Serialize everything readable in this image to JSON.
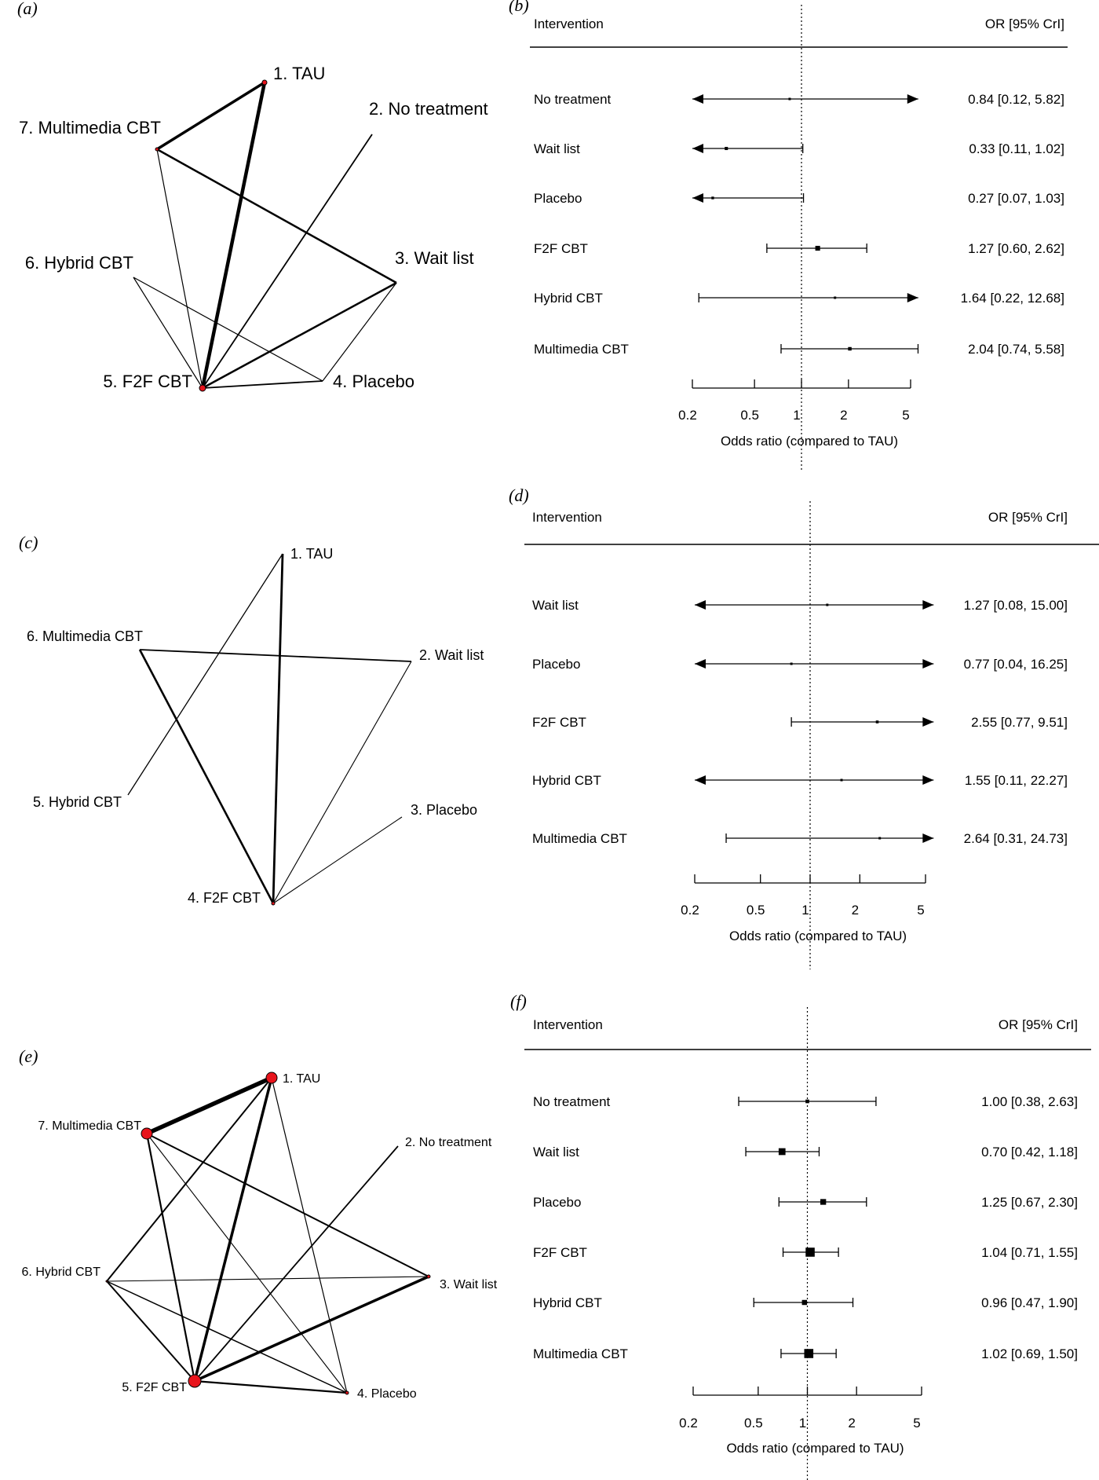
{
  "panels": {
    "a": {
      "label": "(a)"
    },
    "b": {
      "label": "(b)"
    },
    "c": {
      "label": "(c)"
    },
    "d": {
      "label": "(d)"
    },
    "e": {
      "label": "(e)"
    },
    "f": {
      "label": "(f)"
    }
  },
  "networks": [
    {
      "panel": "a",
      "nodes": [
        {
          "label": "1. TAU"
        },
        {
          "label": "2. No treatment"
        },
        {
          "label": "3. Wait list"
        },
        {
          "label": "4. Placebo"
        },
        {
          "label": "5. F2F CBT"
        },
        {
          "label": "6. Hybrid CBT"
        },
        {
          "label": "7. Multimedia CBT"
        }
      ],
      "edges": [
        {
          "from": 1,
          "to": 5,
          "weight": 4.5
        },
        {
          "from": 1,
          "to": 7,
          "weight": 3.5
        },
        {
          "from": 7,
          "to": 3,
          "weight": 2.5
        },
        {
          "from": 7,
          "to": 5,
          "weight": 1.2
        },
        {
          "from": 2,
          "to": 5,
          "weight": 1.8
        },
        {
          "from": 3,
          "to": 5,
          "weight": 2.5
        },
        {
          "from": 3,
          "to": 4,
          "weight": 1.2
        },
        {
          "from": 6,
          "to": 5,
          "weight": 1.2
        },
        {
          "from": 6,
          "to": 4,
          "weight": 1.2
        },
        {
          "from": 4,
          "to": 5,
          "weight": 1.8
        }
      ]
    },
    {
      "panel": "c",
      "nodes": [
        {
          "label": "1. TAU"
        },
        {
          "label": "2. Wait list"
        },
        {
          "label": "3. Placebo"
        },
        {
          "label": "4. F2F CBT"
        },
        {
          "label": "5. Hybrid CBT"
        },
        {
          "label": "6. Multimedia CBT"
        }
      ],
      "edges": [
        {
          "from": 1,
          "to": 4,
          "weight": 2.8
        },
        {
          "from": 1,
          "to": 5,
          "weight": 1.3
        },
        {
          "from": 6,
          "to": 2,
          "weight": 1.8
        },
        {
          "from": 6,
          "to": 4,
          "weight": 2.6
        },
        {
          "from": 2,
          "to": 4,
          "weight": 1.1
        },
        {
          "from": 3,
          "to": 4,
          "weight": 1.1
        }
      ]
    },
    {
      "panel": "e",
      "nodes": [
        {
          "label": "1. TAU"
        },
        {
          "label": "2. No treatment"
        },
        {
          "label": "3. Wait list"
        },
        {
          "label": "4. Placebo"
        },
        {
          "label": "5. F2F CBT"
        },
        {
          "label": "6. Hybrid CBT"
        },
        {
          "label": "7. Multimedia CBT"
        }
      ],
      "edges": [
        {
          "from": 1,
          "to": 7,
          "weight": 5.5
        },
        {
          "from": 1,
          "to": 5,
          "weight": 3.5
        },
        {
          "from": 1,
          "to": 6,
          "weight": 2
        },
        {
          "from": 1,
          "to": 4,
          "weight": 1.2
        },
        {
          "from": 2,
          "to": 5,
          "weight": 1.8
        },
        {
          "from": 7,
          "to": 3,
          "weight": 2
        },
        {
          "from": 7,
          "to": 5,
          "weight": 2.2
        },
        {
          "from": 7,
          "to": 4,
          "weight": 1.1
        },
        {
          "from": 6,
          "to": 3,
          "weight": 1.1
        },
        {
          "from": 6,
          "to": 5,
          "weight": 2
        },
        {
          "from": 6,
          "to": 4,
          "weight": 1.5
        },
        {
          "from": 3,
          "to": 5,
          "weight": 3.5
        },
        {
          "from": 5,
          "to": 4,
          "weight": 2.2
        }
      ]
    }
  ],
  "chart_data": [
    {
      "panel": "b",
      "type": "forest",
      "col_intervention": "Intervention",
      "col_or": "OR [95% CrI]",
      "xlabel": "Odds ratio (compared to TAU)",
      "xscale": "log",
      "ticks": [
        "0.2",
        "0.5",
        "1",
        "2",
        "5"
      ],
      "reference_line": 1,
      "rows": [
        {
          "name": "No treatment",
          "or": 0.84,
          "lo": 0.12,
          "hi": 5.82,
          "text": "0.84 [0.12,  5.82]"
        },
        {
          "name": "Wait list",
          "or": 0.33,
          "lo": 0.11,
          "hi": 1.02,
          "text": "0.33 [0.11,  1.02]"
        },
        {
          "name": "Placebo",
          "or": 0.27,
          "lo": 0.07,
          "hi": 1.03,
          "text": "0.27 [0.07,  1.03]"
        },
        {
          "name": "F2F CBT",
          "or": 1.27,
          "lo": 0.6,
          "hi": 2.62,
          "text": "1.27 [0.60,  2.62]"
        },
        {
          "name": "Hybrid CBT",
          "or": 1.64,
          "lo": 0.22,
          "hi": 12.68,
          "text": "1.64 [0.22, 12.68]"
        },
        {
          "name": "Multimedia CBT",
          "or": 2.04,
          "lo": 0.74,
          "hi": 5.58,
          "text": "2.04 [0.74,  5.58]"
        }
      ]
    },
    {
      "panel": "d",
      "type": "forest",
      "col_intervention": "Intervention",
      "col_or": "OR [95% CrI]",
      "xlabel": "Odds ratio (compared to TAU)",
      "xscale": "log",
      "ticks": [
        "0.2",
        "0.5",
        "1",
        "2",
        "5"
      ],
      "reference_line": 1,
      "rows": [
        {
          "name": "Wait list",
          "or": 1.27,
          "lo": 0.08,
          "hi": 15.0,
          "text": "1.27 [0.08, 15.00]"
        },
        {
          "name": "Placebo",
          "or": 0.77,
          "lo": 0.04,
          "hi": 16.25,
          "text": "0.77 [0.04, 16.25]"
        },
        {
          "name": "F2F CBT",
          "or": 2.55,
          "lo": 0.77,
          "hi": 9.51,
          "text": "2.55 [0.77,  9.51]"
        },
        {
          "name": "Hybrid CBT",
          "or": 1.55,
          "lo": 0.11,
          "hi": 22.27,
          "text": "1.55 [0.11, 22.27]"
        },
        {
          "name": "Multimedia CBT",
          "or": 2.64,
          "lo": 0.31,
          "hi": 24.73,
          "text": "2.64 [0.31, 24.73]"
        }
      ]
    },
    {
      "panel": "f",
      "type": "forest",
      "col_intervention": "Intervention",
      "col_or": "OR [95% CrI]",
      "xlabel": "Odds ratio (compared to TAU)",
      "xscale": "log",
      "ticks": [
        "0.2",
        "0.5",
        "1",
        "2",
        "5"
      ],
      "reference_line": 1,
      "rows": [
        {
          "name": "No treatment",
          "or": 1.0,
          "lo": 0.38,
          "hi": 2.63,
          "text": "1.00 [0.38, 2.63]"
        },
        {
          "name": "Wait list",
          "or": 0.7,
          "lo": 0.42,
          "hi": 1.18,
          "text": "0.70 [0.42, 1.18]"
        },
        {
          "name": "Placebo",
          "or": 1.25,
          "lo": 0.67,
          "hi": 2.3,
          "text": "1.25 [0.67, 2.30]"
        },
        {
          "name": "F2F CBT",
          "or": 1.04,
          "lo": 0.71,
          "hi": 1.55,
          "text": "1.04 [0.71, 1.55]"
        },
        {
          "name": "Hybrid CBT",
          "or": 0.96,
          "lo": 0.47,
          "hi": 1.9,
          "text": "0.96 [0.47, 1.90]"
        },
        {
          "name": "Multimedia CBT",
          "or": 1.02,
          "lo": 0.69,
          "hi": 1.5,
          "text": "1.02 [0.69, 1.50]"
        }
      ]
    }
  ]
}
